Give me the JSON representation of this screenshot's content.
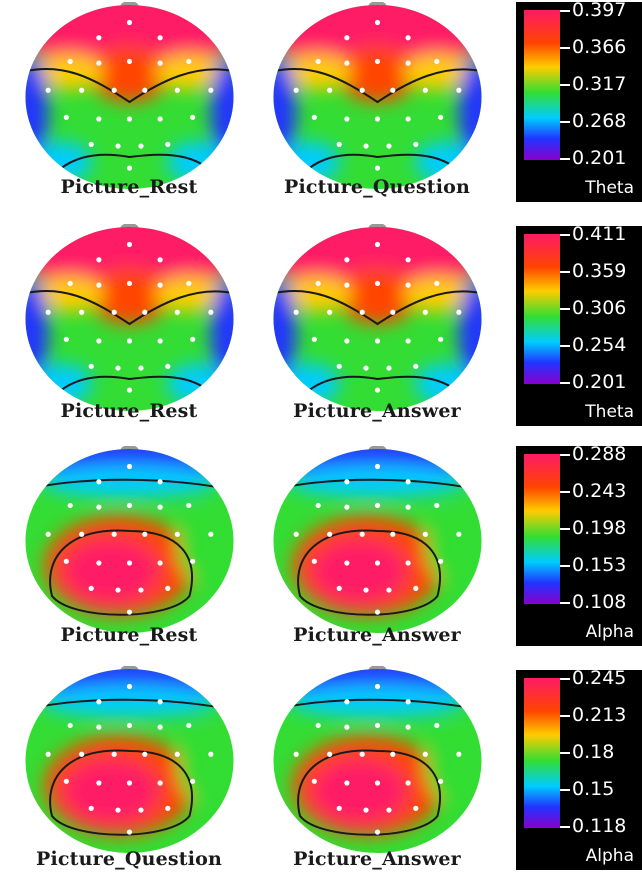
{
  "rows": [
    {
      "maps": [
        {
          "label": "Picture_Rest",
          "pattern": "theta_v"
        },
        {
          "label": "Picture_Question",
          "pattern": "theta_v"
        }
      ],
      "scale": {
        "ticks": [
          "0.397",
          "0.366",
          "0.317",
          "0.268",
          "0.201"
        ],
        "band": "Theta"
      }
    },
    {
      "maps": [
        {
          "label": "Picture_Rest",
          "pattern": "theta_v"
        },
        {
          "label": "Picture_Answer",
          "pattern": "theta_v"
        }
      ],
      "scale": {
        "ticks": [
          "0.411",
          "0.359",
          "0.306",
          "0.254",
          "0.201"
        ],
        "band": "Theta"
      }
    },
    {
      "maps": [
        {
          "label": "Picture_Rest",
          "pattern": "alpha_low"
        },
        {
          "label": "Picture_Answer",
          "pattern": "alpha_low"
        }
      ],
      "scale": {
        "ticks": [
          "0.288",
          "0.243",
          "0.198",
          "0.153",
          "0.108"
        ],
        "band": "Alpha"
      }
    },
    {
      "maps": [
        {
          "label": "Picture_Question",
          "pattern": "alpha_low"
        },
        {
          "label": "Picture_Answer",
          "pattern": "alpha_low"
        }
      ],
      "scale": {
        "ticks": [
          "0.245",
          "0.213",
          "0.18",
          "0.15",
          "0.118"
        ],
        "band": "Alpha"
      }
    }
  ],
  "colors": {
    "high": "#ff1a66",
    "mid_high": "#ff4400",
    "mid": "#ffcc00",
    "green": "#33dd33",
    "cyan": "#00ccff",
    "low": "#2233ff",
    "lowest": "#8800cc",
    "contour": "#1a1a1a",
    "electrode": "#ffffff"
  }
}
